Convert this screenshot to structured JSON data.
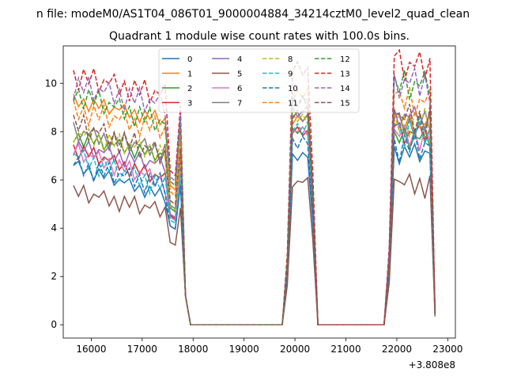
{
  "figure": {
    "suptitle": "n file: modeM0/AS1T04_086T01_9000004884_34214cztM0_level2_quad_clean",
    "offset_label": "+3.808e8"
  },
  "chart_data": {
    "type": "line",
    "title": "Quadrant 1 module wise count rates with 100.0s bins.",
    "xlabel": "",
    "ylabel": "",
    "xlim": [
      15450,
      23150
    ],
    "ylim": [
      -0.55,
      11.55
    ],
    "xticks": [
      16000,
      17000,
      18000,
      19000,
      20000,
      21000,
      22000,
      23000
    ],
    "xtick_labels": [
      "16000",
      "17000",
      "18000",
      "19000",
      "20000",
      "21000",
      "22000",
      "23000"
    ],
    "yticks": [
      0,
      2,
      4,
      6,
      8,
      10
    ],
    "ytick_labels": [
      "0",
      "2",
      "4",
      "6",
      "8",
      "10"
    ],
    "grid": false,
    "legend": {
      "placement": "top-center",
      "columns": 4
    },
    "x": [
      15650,
      15750,
      15850,
      15950,
      16050,
      16150,
      16250,
      16350,
      16450,
      16550,
      16650,
      16750,
      16850,
      16950,
      17050,
      17150,
      17250,
      17350,
      17450,
      17550,
      17650,
      17750,
      17850,
      17950,
      18050,
      18150,
      18250,
      18350,
      18450,
      18550,
      18650,
      18750,
      18850,
      18950,
      19050,
      19150,
      19250,
      19350,
      19450,
      19550,
      19650,
      19750,
      19850,
      19950,
      20050,
      20150,
      20250,
      20350,
      20450,
      20550,
      20650,
      20750,
      20850,
      20950,
      21050,
      21150,
      21250,
      21350,
      21450,
      21550,
      21650,
      21750,
      21850,
      21950,
      22050,
      22150,
      22250,
      22350,
      22450,
      22550,
      22650,
      22750
    ],
    "series": [
      {
        "name": "0",
        "color": "#1f77b4",
        "dash": "solid"
      },
      {
        "name": "1",
        "color": "#ff7f0e",
        "dash": "solid"
      },
      {
        "name": "2",
        "color": "#2ca02c",
        "dash": "solid"
      },
      {
        "name": "3",
        "color": "#d62728",
        "dash": "solid"
      },
      {
        "name": "4",
        "color": "#9467bd",
        "dash": "solid"
      },
      {
        "name": "5",
        "color": "#8c564b",
        "dash": "solid"
      },
      {
        "name": "6",
        "color": "#e377c2",
        "dash": "solid"
      },
      {
        "name": "7",
        "color": "#7f7f7f",
        "dash": "solid"
      },
      {
        "name": "8",
        "color": "#bcbd22",
        "dash": "dashed"
      },
      {
        "name": "9",
        "color": "#17becf",
        "dash": "dashed"
      },
      {
        "name": "10",
        "color": "#1f77b4",
        "dash": "dashed"
      },
      {
        "name": "11",
        "color": "#ff7f0e",
        "dash": "dashed"
      },
      {
        "name": "12",
        "color": "#2ca02c",
        "dash": "dashed"
      },
      {
        "name": "13",
        "color": "#d62728",
        "dash": "dashed"
      },
      {
        "name": "14",
        "color": "#9467bd",
        "dash": "dashed"
      },
      {
        "name": "15",
        "color": "#8c564b",
        "dash": "dashed"
      }
    ],
    "levels": {
      "seg1": [
        6.6,
        9.3,
        7.8,
        7.3,
        7.4,
        5.5,
        7.2,
        8.0,
        7.9,
        7.0,
        6.6,
        8.9,
        9.6,
        10.3,
        9.9,
        8.3
      ],
      "seg2": [
        7.0,
        8.5,
        8.0,
        8.0,
        8.8,
        5.9,
        8.0,
        8.6,
        8.6,
        8.2,
        7.6,
        9.5,
        9.2,
        10.6,
        9.3,
        8.8
      ],
      "seg3": [
        7.1,
        8.3,
        7.7,
        7.9,
        8.6,
        5.8,
        7.8,
        8.3,
        8.4,
        8.0,
        7.4,
        9.2,
        9.9,
        10.7,
        10.0,
        8.5
      ]
    }
  }
}
